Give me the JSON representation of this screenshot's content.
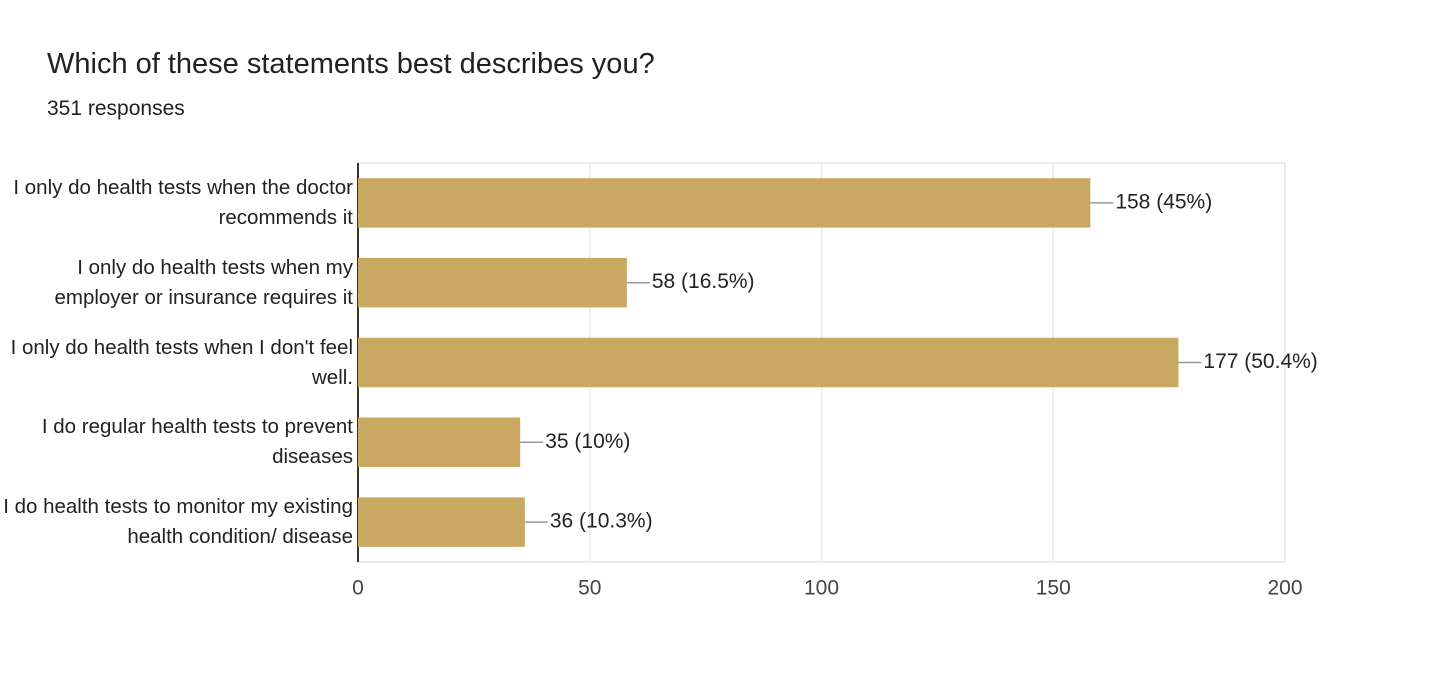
{
  "chart_data": {
    "type": "hbar",
    "title": "Which of these statements best describes you?",
    "subtitle": "351 responses",
    "categories": [
      "I only do health tests when the doctor recommends it",
      "I only do health tests when my employer or insurance requires it",
      "I only do health tests when I don't feel well.",
      "I do regular health tests to prevent diseases",
      "I do health tests to monitor my existing health condition/ disease"
    ],
    "values": [
      158,
      58,
      177,
      35,
      36
    ],
    "value_labels": [
      "158 (45%)",
      "58 (16.5%)",
      "177 (50.4%)",
      "35 (10%)",
      "36 (10.3%)"
    ],
    "color": "#c9a862",
    "xlim": [
      0,
      200
    ],
    "xticks": [
      0,
      50,
      100,
      150,
      200
    ],
    "grid": true
  }
}
